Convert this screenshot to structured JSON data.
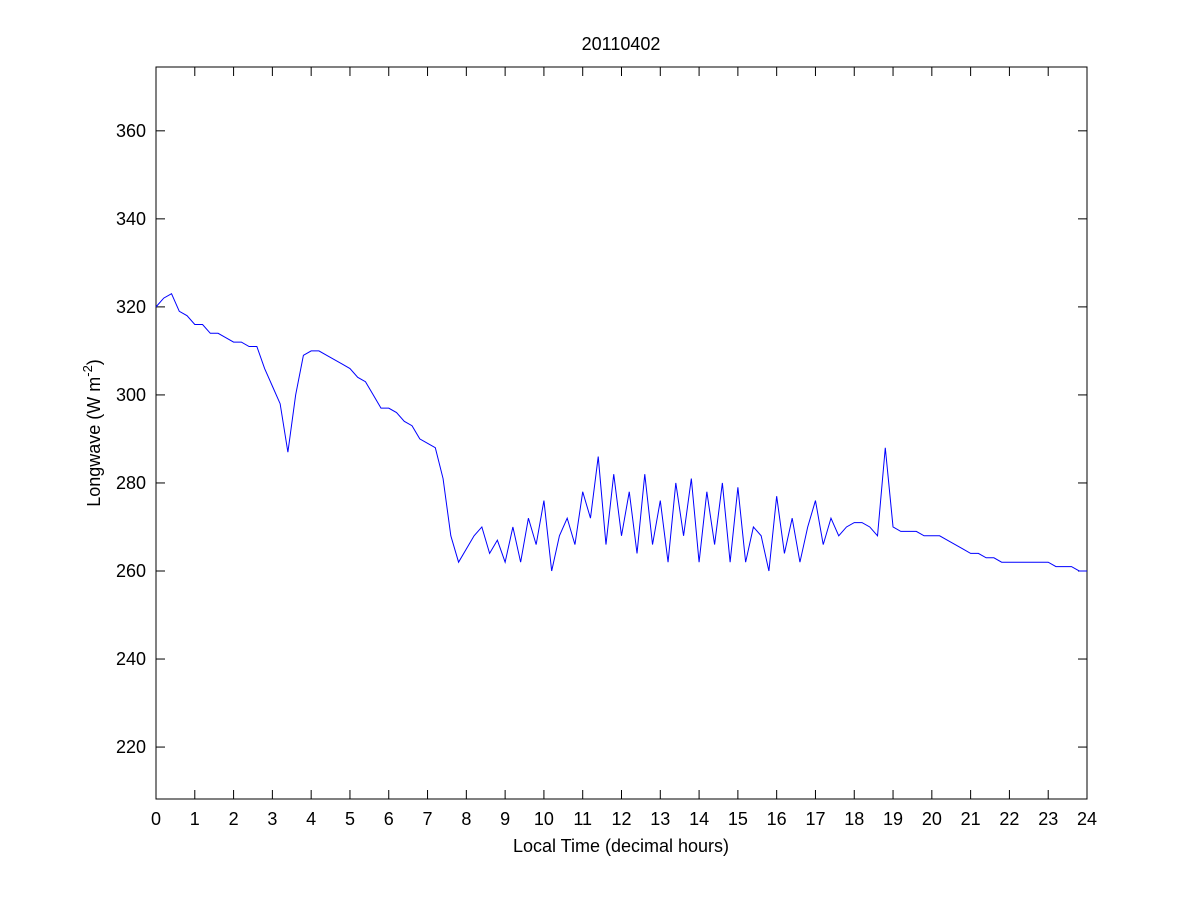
{
  "chart_data": {
    "type": "line",
    "title": "20110402",
    "xlabel": "Local Time (decimal hours)",
    "ylabel_parts": [
      "Longwave (W m",
      "-2",
      ")"
    ],
    "xlim": [
      0,
      24
    ],
    "xticks": [
      0,
      1,
      2,
      3,
      4,
      5,
      6,
      7,
      8,
      9,
      10,
      11,
      12,
      13,
      14,
      15,
      16,
      17,
      18,
      19,
      20,
      21,
      22,
      23,
      24
    ],
    "ylim": [
      208.2,
      374.5
    ],
    "yticks": [
      220,
      240,
      260,
      280,
      300,
      320,
      340,
      360
    ],
    "grid": false,
    "x": [
      0,
      0.2,
      0.4,
      0.6,
      0.8,
      1,
      1.2,
      1.4,
      1.6,
      1.8,
      2,
      2.2,
      2.4,
      2.6,
      2.8,
      3,
      3.2,
      3.4,
      3.6,
      3.8,
      4,
      4.2,
      4.4,
      4.6,
      4.8,
      5,
      5.2,
      5.4,
      5.6,
      5.8,
      6,
      6.2,
      6.4,
      6.6,
      6.8,
      7,
      7.2,
      7.4,
      7.6,
      7.8,
      8,
      8.2,
      8.4,
      8.6,
      8.8,
      9,
      9.2,
      9.4,
      9.6,
      9.8,
      10,
      10.2,
      10.4,
      10.6,
      10.8,
      11,
      11.2,
      11.4,
      11.6,
      11.8,
      12,
      12.2,
      12.4,
      12.6,
      12.8,
      13,
      13.2,
      13.4,
      13.6,
      13.8,
      14,
      14.2,
      14.4,
      14.6,
      14.8,
      15,
      15.2,
      15.4,
      15.6,
      15.8,
      16,
      16.2,
      16.4,
      16.6,
      16.8,
      17,
      17.2,
      17.4,
      17.6,
      17.8,
      18,
      18.2,
      18.4,
      18.6,
      18.8,
      19,
      19.2,
      19.4,
      19.6,
      19.8,
      20,
      20.2,
      20.4,
      20.6,
      20.8,
      21,
      21.2,
      21.4,
      21.6,
      21.8,
      22,
      22.2,
      22.4,
      22.6,
      22.8,
      23,
      23.2,
      23.4,
      23.6,
      23.8,
      24
    ],
    "series": [
      {
        "color": "#0000ff",
        "values": [
          320,
          322,
          323,
          319,
          318,
          316,
          316,
          314,
          314,
          313,
          312,
          312,
          311,
          311,
          306,
          302,
          298,
          287,
          300,
          309,
          310,
          310,
          309,
          308,
          307,
          306,
          304,
          303,
          300,
          297,
          297,
          296,
          294,
          293,
          290,
          289,
          288,
          281,
          268,
          262,
          265,
          268,
          270,
          264,
          267,
          262,
          270,
          262,
          272,
          266,
          276,
          260,
          268,
          272,
          266,
          278,
          272,
          286,
          266,
          282,
          268,
          278,
          264,
          282,
          266,
          276,
          262,
          280,
          268,
          281,
          262,
          278,
          266,
          280,
          262,
          279,
          262,
          270,
          268,
          260,
          277,
          264,
          272,
          262,
          270,
          276,
          266,
          272,
          268,
          270,
          271,
          271,
          270,
          268,
          288,
          270,
          269,
          269,
          269,
          268,
          268,
          268,
          267,
          266,
          265,
          264,
          264,
          263,
          263,
          262,
          262,
          262,
          262,
          262,
          262,
          262,
          261,
          261,
          261,
          260,
          260
        ]
      }
    ]
  }
}
